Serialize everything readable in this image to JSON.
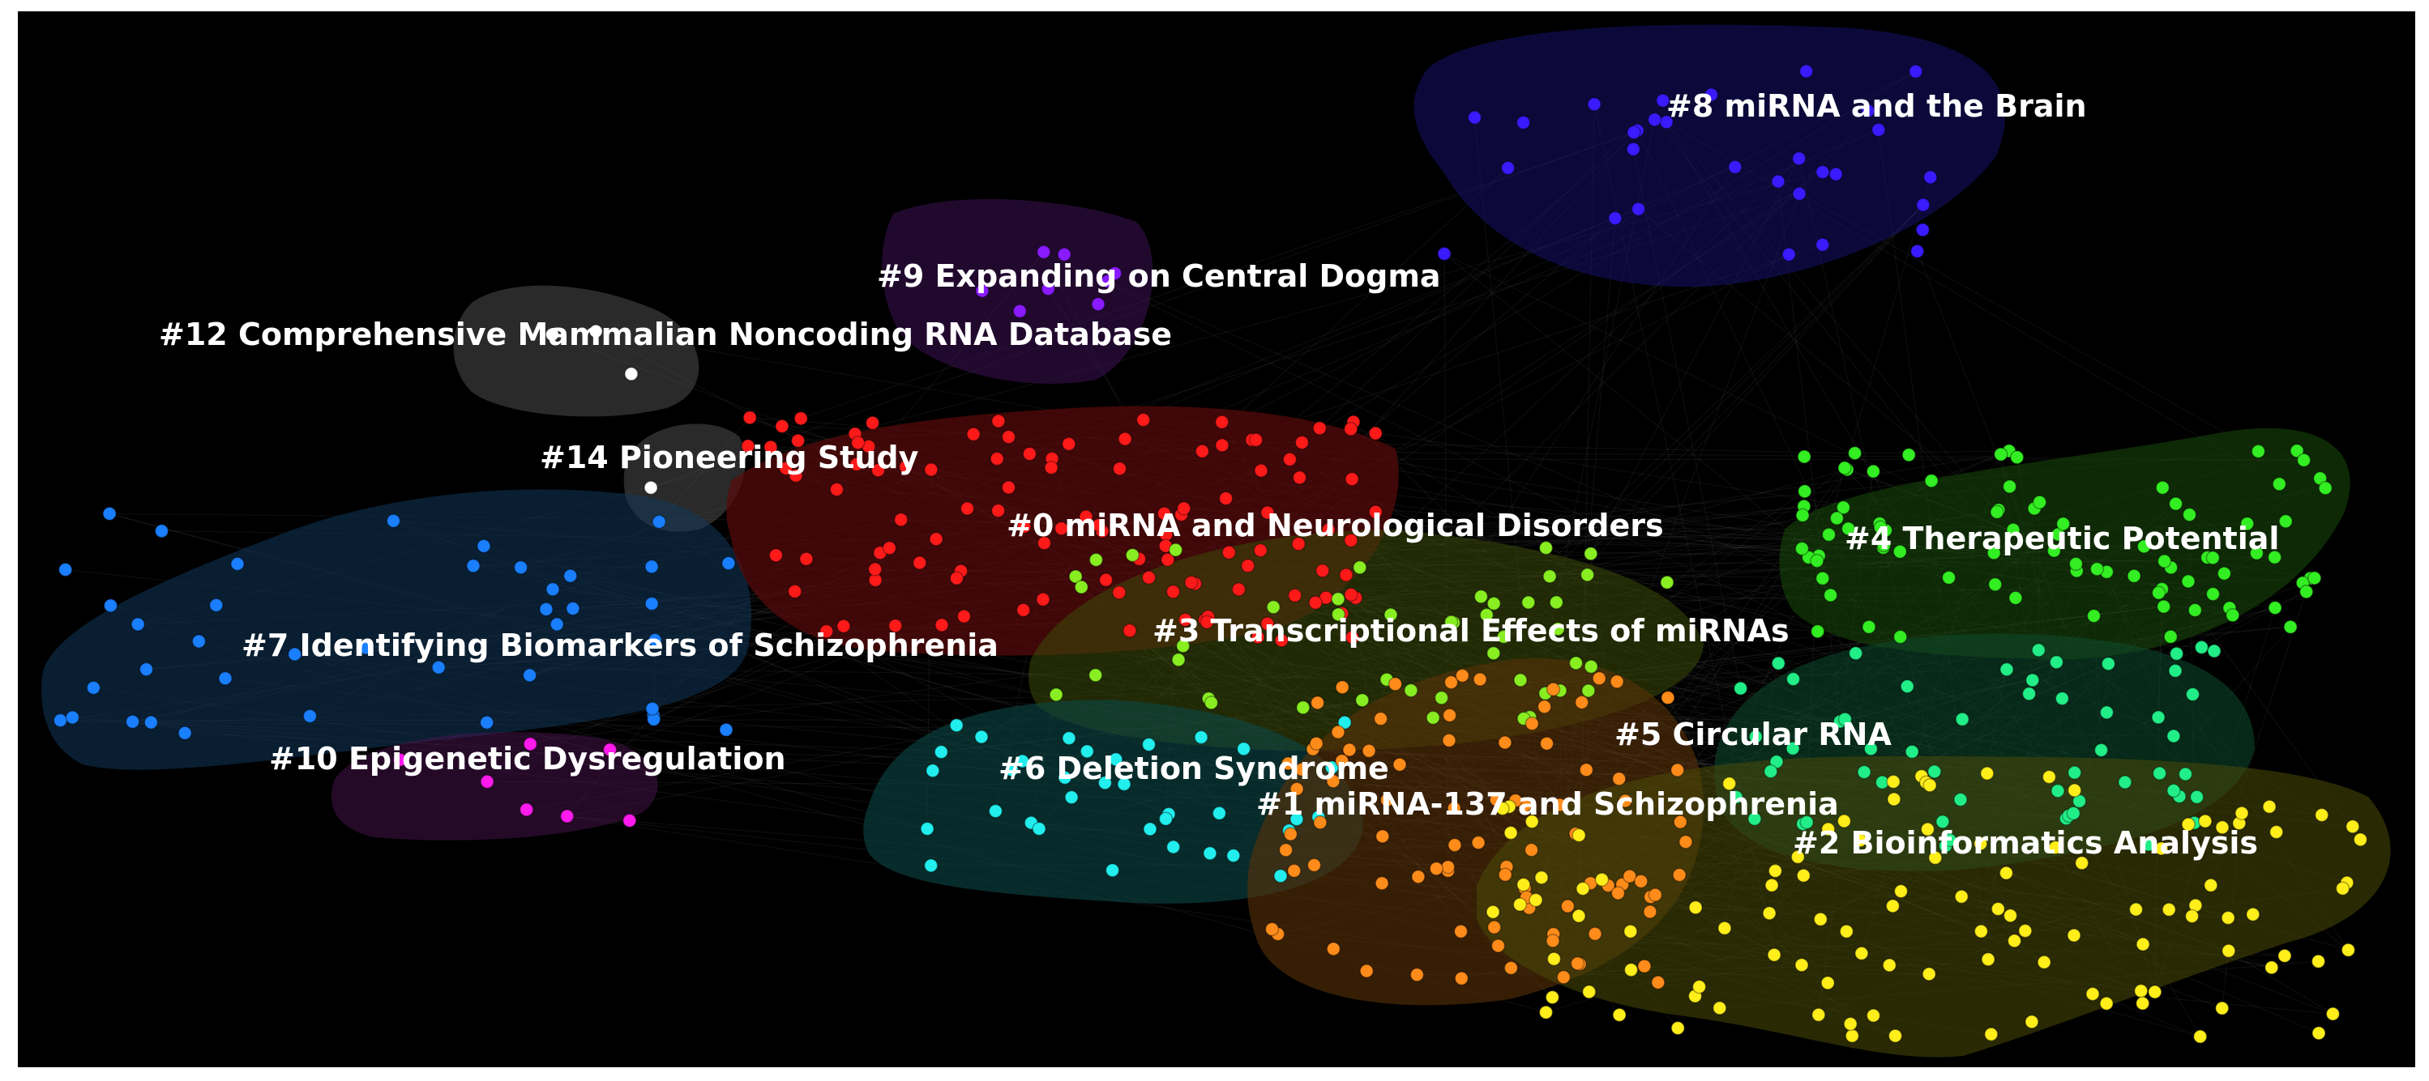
{
  "clusters": [
    {
      "id": "c0",
      "label": "#0 miRNA and Neurological Disorders",
      "color": "#ff1a1a"
    },
    {
      "id": "c1",
      "label": "#1 miRNA-137 and Schizophrenia",
      "color": "#ff8c1a"
    },
    {
      "id": "c2",
      "label": "#2 Bioinformatics Analysis",
      "color": "#ffee1a"
    },
    {
      "id": "c3",
      "label": "#3 Transcriptional Effects of miRNAs",
      "color": "#88ee22"
    },
    {
      "id": "c4",
      "label": "#4 Therapeutic Potential",
      "color": "#33ee22"
    },
    {
      "id": "c5",
      "label": "#5 Circular RNA",
      "color": "#22ee88"
    },
    {
      "id": "c6",
      "label": "#6 Deletion Syndrome",
      "color": "#22eeee"
    },
    {
      "id": "c7",
      "label": "#7 Identifying Biomarkers of Schizophrenia",
      "color": "#1a7fff"
    },
    {
      "id": "c8",
      "label": "#8 miRNA and the Brain",
      "color": "#3a1aff"
    },
    {
      "id": "c9",
      "label": "#9 Expanding on Central Dogma",
      "color": "#8a1aff"
    },
    {
      "id": "c10",
      "label": "#10 Epigenetic Dysregulation",
      "color": "#ff1aee"
    },
    {
      "id": "c12",
      "label": "#12 Comprehensive Mammalian Noncoding RNA Database",
      "color": "#ffffff"
    },
    {
      "id": "c14",
      "label": "#14 Pioneering Study",
      "color": "#ffffff"
    }
  ],
  "background": "#000000"
}
